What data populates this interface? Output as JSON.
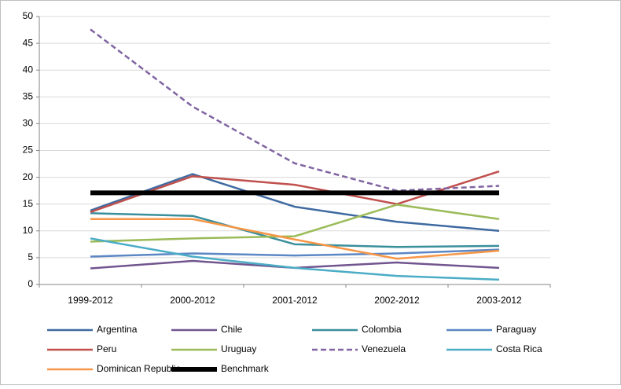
{
  "chart_data": {
    "type": "line",
    "categories": [
      "1999-2012",
      "2000-2012",
      "2001-2012",
      "2002-2012",
      "2003-2012"
    ],
    "ylim": [
      0,
      50
    ],
    "yticks": [
      0,
      5,
      10,
      15,
      20,
      25,
      30,
      35,
      40,
      45,
      50
    ],
    "grid": true,
    "series": [
      {
        "name": "Argentina",
        "color": "#3f6aa1",
        "values": [
          13.8,
          20.6,
          14.5,
          11.7,
          10.0
        ]
      },
      {
        "name": "Chile",
        "color": "#71558f",
        "values": [
          3.0,
          4.4,
          3.1,
          4.1,
          3.1
        ]
      },
      {
        "name": "Colombia",
        "color": "#3a8f9c",
        "values": [
          13.3,
          12.8,
          7.5,
          7.0,
          7.2
        ]
      },
      {
        "name": "Paraguay",
        "color": "#5b87c4",
        "values": [
          5.2,
          5.8,
          5.4,
          5.8,
          6.5
        ]
      },
      {
        "name": "Peru",
        "color": "#c0504d",
        "values": [
          13.5,
          20.2,
          18.6,
          15.0,
          21.1
        ]
      },
      {
        "name": "Uruguay",
        "color": "#9bbb59",
        "values": [
          8.0,
          8.6,
          9.0,
          14.9,
          12.2
        ]
      },
      {
        "name": "Venezuela",
        "color": "#8064a2",
        "dashed": true,
        "values": [
          47.6,
          33.2,
          22.6,
          17.5,
          18.4
        ]
      },
      {
        "name": "Costa Rica",
        "color": "#4bacc6",
        "values": [
          8.6,
          5.2,
          3.1,
          1.6,
          0.9
        ]
      },
      {
        "name": "Dominican Republic",
        "color": "#f79646",
        "values": [
          12.2,
          12.2,
          8.4,
          4.8,
          6.3
        ]
      },
      {
        "name": "Benchmark",
        "color": "#000000",
        "width": 6,
        "values": [
          17.1,
          17.1,
          17.1,
          17.1,
          17.1
        ]
      }
    ]
  }
}
